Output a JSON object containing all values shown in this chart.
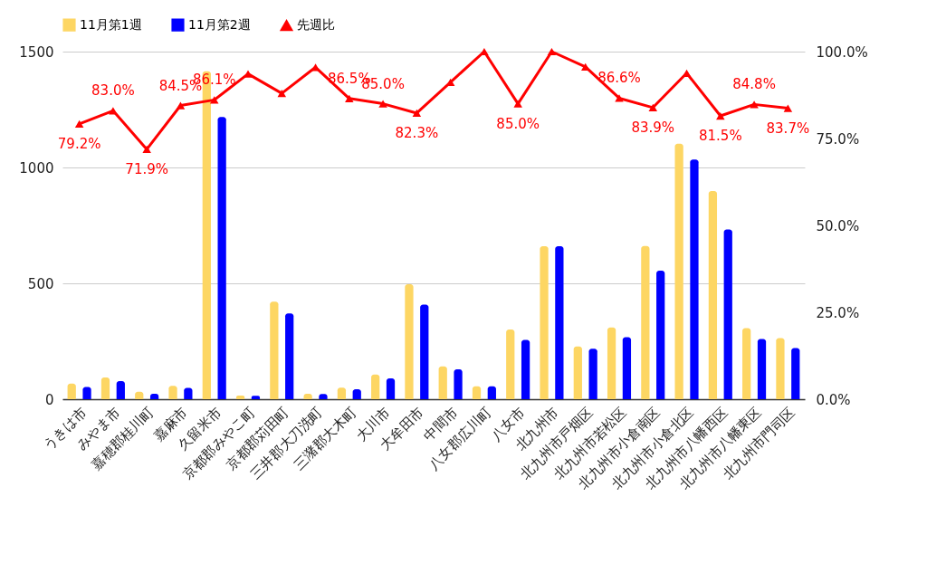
{
  "chart_data": {
    "type": "bar",
    "categories": [
      "うきは市",
      "みやま市",
      "嘉穂郡桂川町",
      "嘉麻市",
      "久留米市",
      "京都郡みやこ町",
      "京都郡苅田町",
      "三井郡大刀洗町",
      "三潴郡大木町",
      "大川市",
      "大牟田市",
      "中間市",
      "八女郡広川町",
      "八女市",
      "北九州市",
      "北九州市戸畑区",
      "北九州市若松区",
      "北九州市小倉南区",
      "北九州市小倉北区",
      "北九州市八幡西区",
      "北九州市八幡東区",
      "北九州市門司区"
    ],
    "series": [
      {
        "name": "11月第1週",
        "color": "#fdd663",
        "values": [
          67,
          94,
          32,
          58,
          1415,
          16,
          421,
          23,
          50,
          106,
          496,
          142,
          56,
          301,
          660,
          228,
          310,
          661,
          1103,
          898,
          307,
          264
        ]
      },
      {
        "name": "11月第2週",
        "color": "#0000ff",
        "values": [
          53,
          78,
          23,
          49,
          1218,
          15,
          370,
          22,
          43,
          90,
          408,
          129,
          56,
          256,
          660,
          218,
          268,
          555,
          1034,
          732,
          260,
          221
        ]
      },
      {
        "name": "先週比",
        "color": "#ff0000",
        "type": "line",
        "axis": "y2",
        "marker": "triangle",
        "values": [
          79.2,
          83.0,
          71.9,
          84.5,
          86.1,
          93.6,
          88.0,
          95.5,
          86.5,
          85.0,
          82.3,
          91.2,
          100.0,
          85.0,
          100.0,
          95.6,
          86.6,
          83.9,
          93.8,
          81.5,
          84.8,
          83.7
        ],
        "value_labels": [
          "79.2%",
          "83.0%",
          "71.9%",
          "84.5%",
          "86.1%",
          null,
          null,
          null,
          "86.5%",
          "85.0%",
          "82.3%",
          null,
          null,
          "85.0%",
          null,
          null,
          "86.6%",
          "83.9%",
          null,
          "81.5%",
          "84.8%",
          "83.7%"
        ]
      }
    ],
    "ylim": [
      0,
      1500
    ],
    "yticks": [
      0,
      500,
      1000,
      1500
    ],
    "y2lim": [
      0,
      100
    ],
    "y2ticks": [
      {
        "value": 0,
        "label": "0.0%"
      },
      {
        "value": 25,
        "label": "25.0%"
      },
      {
        "value": 50,
        "label": "50.0%"
      },
      {
        "value": 75,
        "label": "75.0%"
      },
      {
        "value": 100,
        "label": "100.0%"
      }
    ],
    "grid": "y",
    "legend": "top"
  }
}
